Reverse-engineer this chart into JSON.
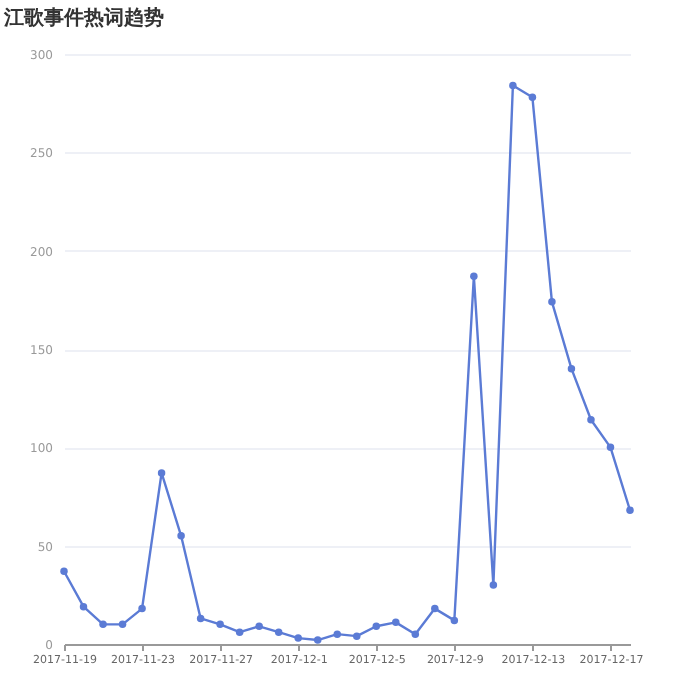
{
  "chart_data": {
    "type": "line",
    "title": "江歌事件热词趋势",
    "x": [
      "2017-11-19",
      "2017-11-20",
      "2017-11-21",
      "2017-11-22",
      "2017-11-23",
      "2017-11-24",
      "2017-11-25",
      "2017-11-26",
      "2017-11-27",
      "2017-11-28",
      "2017-11-29",
      "2017-11-30",
      "2017-12-01",
      "2017-12-02",
      "2017-12-03",
      "2017-12-04",
      "2017-12-05",
      "2017-12-06",
      "2017-12-07",
      "2017-12-08",
      "2017-12-09",
      "2017-12-10",
      "2017-12-11",
      "2017-12-12",
      "2017-12-13",
      "2017-12-14",
      "2017-12-15",
      "2017-12-16",
      "2017-12-17",
      "2017-12-18"
    ],
    "series": [
      {
        "color": "#5b7bd5",
        "values": [
          37,
          19,
          10,
          10,
          18,
          87,
          55,
          13,
          10,
          6,
          9,
          6,
          3,
          2,
          5,
          4,
          9,
          11,
          5,
          18,
          12,
          187,
          30,
          284,
          278,
          174,
          140,
          114,
          100,
          68
        ]
      }
    ],
    "xlim": [
      "2017-11-19",
      "2017-12-18"
    ],
    "xticks": [
      {
        "value": "2017-11-19",
        "label": "2017-11-19"
      },
      {
        "value": "2017-11-23",
        "label": "2017-11-23"
      },
      {
        "value": "2017-11-27",
        "label": "2017-11-27"
      },
      {
        "value": "2017-12-01",
        "label": "2017-12-1"
      },
      {
        "value": "2017-12-05",
        "label": "2017-12-5"
      },
      {
        "value": "2017-12-09",
        "label": "2017-12-9"
      },
      {
        "value": "2017-12-13",
        "label": "2017-12-13"
      },
      {
        "value": "2017-12-17",
        "label": "2017-12-17"
      }
    ],
    "ylim": [
      0,
      300
    ],
    "yticks": [
      0,
      50,
      100,
      150,
      200,
      250,
      300
    ],
    "grid": "y",
    "marker": "circle",
    "line_style": "solid"
  }
}
